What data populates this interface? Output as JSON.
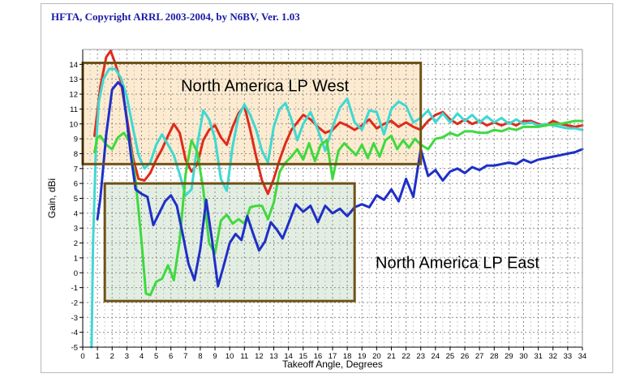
{
  "header": {
    "title": "HFTA, Copyright ARRL 2003-2004, by N6BV, Ver. 1.03"
  },
  "chart_data": {
    "type": "line",
    "title": "HFTA, Copyright ARRL 2003-2004, by N6BV, Ver. 1.03",
    "xlabel": "Takeoff Angle, Degrees",
    "ylabel": "Gain, dBi",
    "xlim": [
      0,
      34
    ],
    "ylim": [
      -5,
      15
    ],
    "xticks": [
      0,
      1,
      2,
      3,
      4,
      5,
      6,
      7,
      8,
      9,
      10,
      11,
      12,
      13,
      14,
      15,
      16,
      17,
      18,
      19,
      20,
      21,
      22,
      23,
      24,
      25,
      26,
      27,
      28,
      29,
      30,
      31,
      32,
      33,
      34
    ],
    "yticks": [
      -5,
      -4,
      -3,
      -2,
      -1,
      0,
      1,
      2,
      3,
      4,
      5,
      6,
      7,
      8,
      9,
      10,
      11,
      12,
      13,
      14
    ],
    "grid": true,
    "colors": {
      "red": "#e02a1a",
      "cyan": "#3fd8d2",
      "green": "#3fd93f",
      "blue": "#1f2fc8",
      "west_fill": "#fcebd0",
      "east_fill": "#e3eee2",
      "box_border": "#6f5218"
    },
    "annotations": [
      {
        "text": "North America LP West",
        "x_range": [
          0,
          23
        ],
        "y_range": [
          7.3,
          14.1
        ]
      },
      {
        "text": "North America LP East",
        "x_range": [
          1.5,
          18.5
        ],
        "y_range": [
          -1.9,
          6
        ]
      }
    ],
    "series": [
      {
        "name": "red",
        "color": "#e02a1a",
        "x": [
          0.8,
          1.2,
          1.6,
          1.9,
          2.2,
          2.6,
          3.0,
          3.4,
          3.8,
          4.2,
          4.6,
          5.0,
          5.4,
          5.8,
          6.2,
          6.6,
          7.0,
          7.4,
          7.8,
          8.2,
          8.6,
          9.0,
          9.4,
          9.8,
          10.2,
          10.6,
          11.0,
          11.4,
          11.8,
          12.2,
          12.6,
          13.0,
          13.4,
          13.8,
          14.2,
          14.6,
          15.0,
          15.5,
          16.0,
          16.5,
          17.0,
          17.5,
          18.0,
          18.5,
          19.0,
          19.5,
          20.0,
          20.5,
          21.0,
          21.5,
          22.0,
          22.5,
          23.0,
          23.5,
          24.0,
          24.5,
          25.0,
          25.5,
          26.0,
          26.5,
          27.0,
          27.5,
          28.0,
          28.5,
          29.0,
          29.5,
          30.0,
          30.5,
          31.0,
          31.5,
          32.0,
          32.5,
          33.0,
          33.5,
          34.0
        ],
        "values": [
          9.2,
          12.5,
          14.5,
          14.9,
          14.1,
          12.8,
          10.4,
          7.8,
          6.3,
          6.2,
          6.7,
          7.6,
          8.3,
          9.2,
          10,
          9.4,
          7.6,
          6.8,
          7.3,
          8.9,
          9.6,
          9.9,
          9.1,
          8.6,
          9.8,
          10.7,
          11.2,
          9.6,
          7.8,
          6.2,
          5.3,
          6.3,
          7.6,
          8.7,
          9.6,
          10.1,
          10.6,
          10.3,
          9.8,
          9.4,
          9.6,
          10.1,
          9.9,
          9.6,
          9.9,
          10.3,
          9.7,
          10,
          10.2,
          9.8,
          10.1,
          9.8,
          9.6,
          10.2,
          10.6,
          10.8,
          10.3,
          10,
          10.3,
          10,
          10.2,
          9.9,
          10.1,
          9.9,
          10.1,
          9.9,
          10.2,
          10.2,
          10,
          9.9,
          10.2,
          10,
          9.9,
          9.8,
          9.9
        ]
      },
      {
        "name": "cyan",
        "color": "#3fd8d2",
        "x": [
          0.6,
          0.7,
          0.9,
          1.1,
          1.4,
          1.8,
          2.2,
          2.6,
          3.0,
          3.4,
          3.8,
          4.2,
          4.6,
          5.0,
          5.4,
          5.8,
          6.2,
          6.6,
          7.0,
          7.4,
          7.8,
          8.2,
          8.6,
          9.0,
          9.4,
          9.8,
          10.2,
          10.6,
          11.0,
          11.4,
          11.8,
          12.2,
          12.6,
          13.0,
          13.4,
          13.8,
          14.2,
          14.6,
          15.0,
          15.5,
          16.0,
          16.5,
          17.0,
          17.5,
          18.0,
          18.5,
          19.0,
          19.5,
          20.0,
          20.5,
          21.0,
          21.5,
          22.0,
          22.5,
          23.0,
          23.5,
          24.0,
          24.5,
          25.0,
          25.5,
          26.0,
          26.5,
          27.0,
          27.5,
          28.0,
          28.5,
          29.0,
          29.5,
          30.0,
          30.5,
          31.0,
          31.5,
          32.0,
          32.5,
          33.0,
          33.5,
          34.0
        ],
        "values": [
          -5,
          2,
          8.5,
          11.5,
          13,
          13.7,
          13.7,
          13.1,
          11.8,
          9.8,
          7.9,
          7,
          7.4,
          8.6,
          9.3,
          8.6,
          7.9,
          6.6,
          5.2,
          5.6,
          8.6,
          10.9,
          10.3,
          9,
          6.3,
          5.5,
          8.5,
          10.5,
          11.3,
          10.6,
          9.6,
          8.2,
          7.4,
          9.8,
          11,
          11.4,
          10.3,
          8.9,
          10,
          10.8,
          9.6,
          8.2,
          9.8,
          11.1,
          11.7,
          10.1,
          9.6,
          10.9,
          10.8,
          9.3,
          11,
          11.5,
          11.2,
          10.1,
          10.4,
          10.9,
          10.1,
          10.7,
          10.1,
          10.7,
          10.2,
          10.6,
          10.1,
          10.5,
          10.1,
          10.4,
          10,
          10.3,
          10,
          10.1,
          9.9,
          10,
          9.9,
          9.8,
          9.7,
          9.7,
          9.6
        ]
      },
      {
        "name": "green",
        "color": "#3fd93f",
        "x": [
          0.8,
          1.0,
          1.2,
          1.6,
          2.0,
          2.4,
          2.8,
          3.2,
          3.6,
          4.0,
          4.3,
          4.6,
          5.0,
          5.4,
          5.8,
          6.2,
          6.6,
          7.0,
          7.4,
          7.8,
          8.2,
          8.6,
          9.0,
          9.4,
          9.8,
          10.2,
          10.6,
          11.0,
          11.4,
          11.8,
          12.2,
          12.6,
          13.0,
          13.4,
          13.8,
          14.2,
          14.6,
          15.0,
          15.4,
          15.8,
          16.2,
          16.6,
          17.0,
          17.4,
          17.8,
          18.2,
          18.6,
          19.0,
          19.4,
          19.8,
          20.2,
          20.6,
          21.0,
          21.4,
          21.8,
          22.2,
          22.6,
          23.0,
          23.5,
          24.0,
          24.5,
          25.0,
          25.5,
          26.0,
          26.5,
          27.0,
          27.5,
          28.0,
          28.5,
          29.0,
          29.5,
          30.0,
          30.5,
          31.0,
          31.5,
          32.0,
          32.5,
          33.0,
          33.5,
          34.0
        ],
        "values": [
          8.1,
          9.1,
          9.2,
          8.6,
          8.3,
          9.1,
          9.4,
          8.8,
          6.2,
          2.1,
          -1.4,
          -1.5,
          -0.6,
          -0.4,
          0.5,
          -0.5,
          2.2,
          6.6,
          8.9,
          8.1,
          5.6,
          2,
          1.3,
          3.5,
          3.9,
          3.3,
          3.6,
          3.3,
          4.4,
          4.5,
          4.5,
          3.6,
          4.7,
          6.8,
          7.4,
          7.8,
          8.3,
          7.6,
          8.7,
          7.5,
          8.6,
          8.9,
          6.3,
          8.2,
          8.7,
          8.3,
          7.9,
          8.6,
          7.7,
          8.7,
          7.8,
          8.9,
          9.2,
          8.3,
          8.9,
          8.4,
          9,
          8.6,
          8.3,
          9,
          9.1,
          9.4,
          9.2,
          9.5,
          9.5,
          9.4,
          9.4,
          9.6,
          9.5,
          9.7,
          9.6,
          9.8,
          9.8,
          9.8,
          9.9,
          10,
          10,
          10.1,
          10.2,
          10.2
        ]
      },
      {
        "name": "blue",
        "color": "#1f2fc8",
        "x": [
          1.0,
          1.2,
          1.6,
          2.0,
          2.4,
          2.7,
          3.0,
          3.3,
          3.6,
          4.0,
          4.4,
          4.8,
          5.2,
          5.6,
          6.0,
          6.4,
          6.8,
          7.2,
          7.6,
          8.0,
          8.4,
          8.8,
          9.2,
          9.6,
          10.0,
          10.4,
          10.8,
          11.2,
          11.6,
          12.0,
          12.4,
          12.8,
          13.2,
          13.6,
          14.0,
          14.5,
          15.0,
          15.5,
          16.0,
          16.5,
          17.0,
          17.5,
          18.0,
          18.5,
          19.0,
          19.5,
          20.0,
          20.5,
          21.0,
          21.5,
          22.0,
          22.5,
          23.0,
          23.5,
          24.0,
          24.5,
          25.0,
          25.5,
          26.0,
          26.5,
          27.0,
          27.5,
          28.0,
          28.5,
          29.0,
          29.5,
          30.0,
          30.5,
          31.0,
          31.5,
          32.0,
          32.5,
          33.0,
          33.5,
          34.0
        ],
        "values": [
          3.6,
          5,
          9.3,
          12.3,
          12.8,
          12.5,
          10.2,
          7.7,
          5.6,
          5.3,
          5.1,
          3.2,
          4,
          4.8,
          5.2,
          4.5,
          2.6,
          0.6,
          -0.5,
          1.6,
          4.9,
          2.2,
          -0.9,
          0.5,
          2,
          2.6,
          2.2,
          3.8,
          2.6,
          1.5,
          2.1,
          3.4,
          2.9,
          2.3,
          3.3,
          4.6,
          4.1,
          4.5,
          3.4,
          4.5,
          4,
          4.3,
          3.8,
          4.4,
          4.6,
          4.4,
          5.2,
          4.9,
          5.6,
          4.8,
          6.3,
          5.1,
          8.3,
          6.5,
          6.9,
          6.2,
          6.8,
          7,
          6.7,
          7.1,
          6.9,
          7.2,
          7.2,
          7.3,
          7.4,
          7.3,
          7.6,
          7.4,
          7.6,
          7.7,
          7.8,
          7.9,
          8,
          8.1,
          8.3
        ]
      }
    ]
  }
}
